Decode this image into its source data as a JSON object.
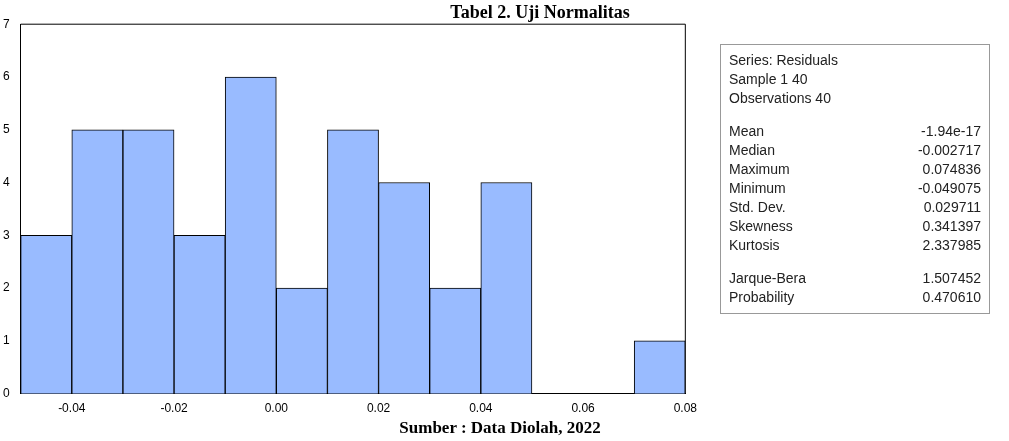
{
  "chart_data": [
    {
      "type": "histogram",
      "title": "Tabel 2. Uji Normalitas",
      "bins": [
        -0.05,
        -0.04,
        -0.03,
        -0.02,
        -0.01,
        0,
        0.01,
        0.02,
        0.03,
        0.04,
        0.05,
        0.06,
        0.07,
        0.08
      ],
      "values": [
        3,
        5,
        5,
        3,
        6,
        2,
        5,
        4,
        2,
        4,
        0,
        0,
        1
      ],
      "color": "#99bbff",
      "xlim": [
        -0.05,
        0.08
      ],
      "xticks": [
        {
          "value": -0.04,
          "label": "-0.04"
        },
        {
          "value": -0.02,
          "label": "-0.02"
        },
        {
          "value": 0,
          "label": "0.00"
        },
        {
          "value": 0.02,
          "label": "0.02"
        },
        {
          "value": 0.04,
          "label": "0.04"
        },
        {
          "value": 0.06,
          "label": "0.06"
        },
        {
          "value": 0.08,
          "label": "0.08"
        }
      ],
      "ylim": [
        0,
        7
      ],
      "yticks": [
        0,
        1,
        2,
        3,
        4,
        5,
        6,
        7
      ],
      "grid": false,
      "legend": false,
      "annotations": [
        "Sumber : Data Diolah, 2022"
      ]
    },
    {
      "type": "other",
      "annotations": [
        "Series: Residuals",
        "Sample 1 40",
        "Observations 40",
        "Mean -1.94e-17",
        "Median -0.002717",
        "Maximum 0.074836",
        "Minimum -0.049075",
        "Std. Dev. 0.029711",
        "Skewness 0.341397",
        "Kurtosis 2.337985",
        "Jarque-Bera 1.507452",
        "Probability 0.470610"
      ]
    }
  ]
}
